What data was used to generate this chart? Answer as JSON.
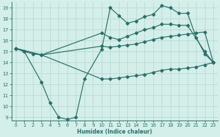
{
  "xlabel": "Humidex (Indice chaleur)",
  "bg_color": "#d4eeea",
  "grid_color": "#b8d8d4",
  "line_color": "#2a7068",
  "xlim": [
    -0.5,
    23.5
  ],
  "ylim": [
    8.7,
    19.5
  ],
  "xticks": [
    0,
    1,
    2,
    3,
    4,
    5,
    6,
    7,
    8,
    9,
    10,
    11,
    12,
    13,
    14,
    15,
    16,
    17,
    18,
    19,
    20,
    21,
    22,
    23
  ],
  "yticks": [
    9,
    10,
    11,
    12,
    13,
    14,
    15,
    16,
    17,
    18,
    19
  ],
  "line_top_x": [
    0,
    1,
    2,
    3,
    10,
    11,
    12,
    13,
    14,
    15,
    16,
    17,
    18,
    19,
    20,
    22,
    23
  ],
  "line_top_y": [
    15.3,
    15.0,
    14.8,
    14.7,
    16.7,
    16.3,
    16.1,
    16.4,
    16.7,
    17.0,
    17.2,
    17.5,
    17.5,
    17.4,
    17.4,
    15.0,
    14.0
  ],
  "line_mid_x": [
    0,
    3,
    10,
    11,
    12,
    13,
    14,
    15,
    16,
    17,
    18,
    19,
    20,
    21,
    22,
    23
  ],
  "line_mid_y": [
    15.3,
    14.7,
    15.5,
    15.4,
    15.5,
    15.6,
    15.7,
    15.9,
    16.1,
    16.3,
    16.4,
    16.5,
    16.6,
    16.7,
    16.8,
    14.0
  ],
  "line_low_x": [
    0,
    3,
    10,
    11,
    12,
    13,
    14,
    15,
    16,
    17,
    18,
    19,
    20,
    21,
    22,
    23
  ],
  "line_low_y": [
    15.3,
    14.7,
    12.5,
    12.5,
    12.6,
    12.7,
    12.8,
    12.9,
    13.1,
    13.3,
    13.4,
    13.4,
    13.5,
    13.6,
    13.8,
    14.0
  ],
  "line_curve_x": [
    0,
    1,
    3,
    4,
    5,
    6,
    7,
    8,
    10,
    11,
    12,
    13,
    14,
    15,
    16,
    17,
    18,
    19,
    20,
    21,
    22,
    23
  ],
  "line_curve_y": [
    15.3,
    15.0,
    12.2,
    10.3,
    9.0,
    8.8,
    9.0,
    12.5,
    15.2,
    19.0,
    18.3,
    17.6,
    17.8,
    18.2,
    18.4,
    19.2,
    19.0,
    18.5,
    18.5,
    16.3,
    14.8,
    14.0
  ]
}
